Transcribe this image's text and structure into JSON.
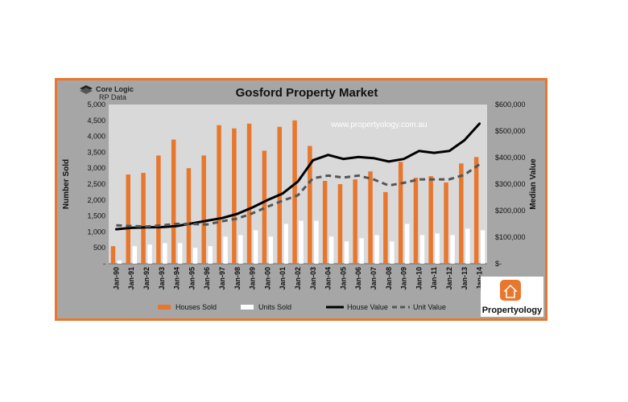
{
  "chart_data": {
    "type": "bar",
    "title": "Gosford Property Market",
    "watermark": "www.propertyology.com.au",
    "ylabel": "Number Sold",
    "y2label": "Median Value",
    "ylim": [
      0,
      5000
    ],
    "y2lim": [
      0,
      600000
    ],
    "yticks": [
      "-",
      "500",
      "1,000",
      "1,500",
      "2,000",
      "2,500",
      "3,000",
      "3,500",
      "4,000",
      "4,500",
      "5,000"
    ],
    "y2ticks": [
      "$-",
      "$100,000",
      "$200,000",
      "$300,000",
      "$400,000",
      "$500,000",
      "$600,000"
    ],
    "categories": [
      "Jan-90",
      "Jan-91",
      "Jan-92",
      "Jan-93",
      "Jan-94",
      "Jan-95",
      "Jan-96",
      "Jan-97",
      "Jan-98",
      "Jan-99",
      "Jan-00",
      "Jan-01",
      "Jan-02",
      "Jan-03",
      "Jan-04",
      "Jan-05",
      "Jan-06",
      "Jan-07",
      "Jan-08",
      "Jan-09",
      "Jan-10",
      "Jan-11",
      "Jan-12",
      "Jan-13",
      "Jan-14"
    ],
    "series": [
      {
        "name": "Houses Sold",
        "kind": "bar",
        "axis": "left",
        "color": "#e8772e",
        "values": [
          550,
          2800,
          2850,
          3400,
          3900,
          3000,
          3400,
          4350,
          4250,
          4400,
          3550,
          4300,
          4500,
          3700,
          2600,
          2500,
          2650,
          2900,
          2250,
          3200,
          2700,
          2750,
          2550,
          3150,
          3350
        ]
      },
      {
        "name": "Units Sold",
        "kind": "bar",
        "axis": "left",
        "color": "#ffffff",
        "values": [
          100,
          550,
          600,
          650,
          650,
          500,
          550,
          850,
          900,
          1050,
          850,
          1250,
          1350,
          1350,
          850,
          700,
          800,
          900,
          700,
          1250,
          900,
          950,
          900,
          1100,
          1050
        ]
      },
      {
        "name": "House Value",
        "kind": "line",
        "axis": "right",
        "color": "#000000",
        "values": [
          130000,
          135000,
          137000,
          138000,
          142000,
          152000,
          162000,
          172000,
          188000,
          212000,
          240000,
          265000,
          310000,
          390000,
          410000,
          395000,
          402000,
          398000,
          385000,
          395000,
          425000,
          418000,
          425000,
          465000,
          528000
        ]
      },
      {
        "name": "Unit Value",
        "kind": "line",
        "axis": "right",
        "color": "#555555",
        "dashed": true,
        "values": [
          145000,
          142000,
          140000,
          145000,
          150000,
          150000,
          148000,
          160000,
          170000,
          190000,
          215000,
          238000,
          258000,
          322000,
          332000,
          325000,
          332000,
          318000,
          295000,
          305000,
          318000,
          318000,
          318000,
          335000,
          375000
        ]
      }
    ],
    "legend_position": "bottom",
    "grid": false
  },
  "logos": {
    "corelogic_line1": "Core Logic",
    "corelogic_line2": "RP Data",
    "propertyology": "Propertyology"
  }
}
